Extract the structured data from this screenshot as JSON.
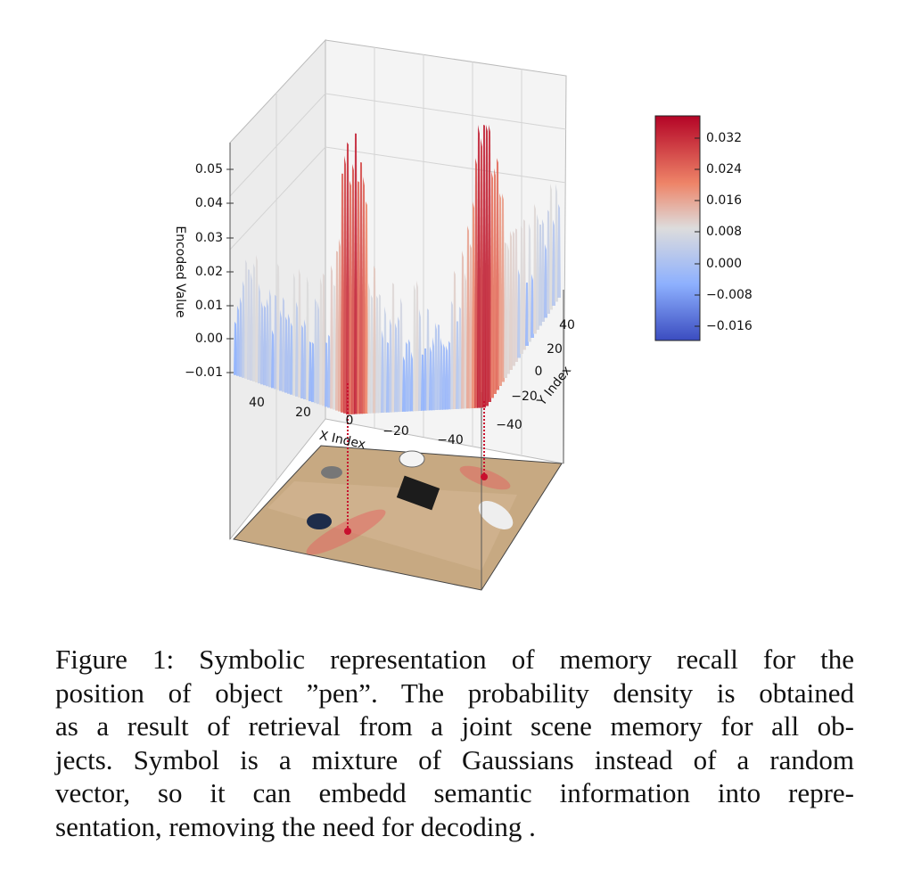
{
  "figure": {
    "z_axis": {
      "label": "Encoded Value",
      "ticks": [
        "0.05",
        "0.04",
        "0.03",
        "0.02",
        "0.01",
        "0.00",
        "−0.01"
      ]
    },
    "x_axis": {
      "label": "X Index",
      "ticks": [
        "40",
        "20",
        "0",
        "−20",
        "−40"
      ]
    },
    "y_axis": {
      "label": "Y Index",
      "ticks": [
        "40",
        "20",
        "0",
        "−20",
        "−40"
      ]
    },
    "colorbar": {
      "ticks": [
        "0.032",
        "0.024",
        "0.016",
        "0.008",
        "0.000",
        "−0.008",
        "−0.016"
      ]
    }
  },
  "caption": {
    "lines": [
      "Figure 1: Symbolic representation of memory recall for the",
      "position of object ”pen”. The probability density is obtained",
      "as a result of retrieval from a joint scene memory for all ob-",
      "jects. Symbol is a mixture of Gaussians instead of a random",
      "vector, so it can embedd semantic information into repre-",
      "sentation, removing the need for decoding ."
    ]
  }
}
